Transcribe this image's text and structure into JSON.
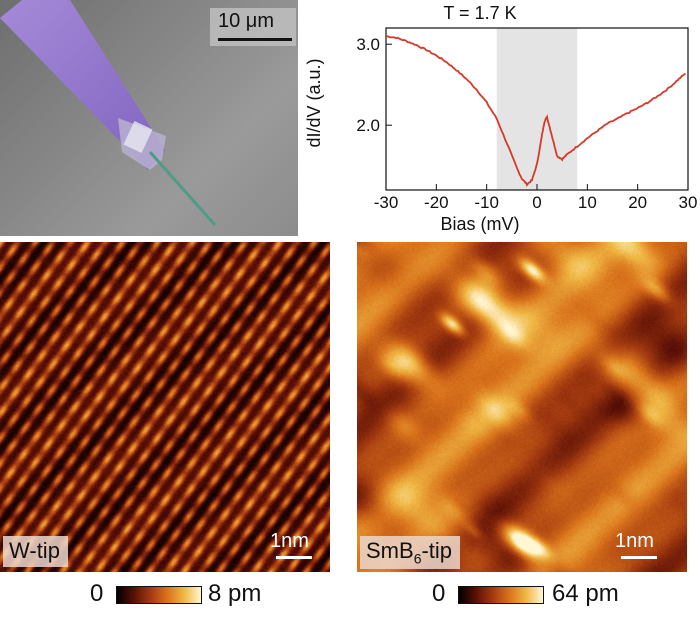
{
  "sem": {
    "scalebar_label": "10 μm"
  },
  "chart_data": {
    "type": "line",
    "title": "T = 1.7 K",
    "xlabel": "Bias (mV)",
    "ylabel": "dI/dV (a.u.)",
    "xlim": [
      -30,
      30
    ],
    "ylim": [
      1.2,
      3.2
    ],
    "x_ticks": [
      "-30",
      "-20",
      "-10",
      "0",
      "10",
      "20",
      "30"
    ],
    "y_ticks": [
      "2.0",
      "3.0"
    ],
    "shaded_region": [
      -8,
      8
    ],
    "line_color": "#d43a2a",
    "x": [
      -30,
      -28,
      -26,
      -24,
      -22,
      -20,
      -18,
      -16,
      -14,
      -12,
      -10,
      -8,
      -6,
      -4,
      -3,
      -2,
      -1,
      0,
      1,
      1.5,
      2,
      3,
      4,
      5,
      6,
      8,
      10,
      12,
      14,
      16,
      18,
      20,
      22,
      24,
      26,
      28,
      29.5
    ],
    "y": [
      3.1,
      3.08,
      3.04,
      2.99,
      2.93,
      2.86,
      2.78,
      2.68,
      2.57,
      2.44,
      2.28,
      2.08,
      1.78,
      1.47,
      1.34,
      1.27,
      1.32,
      1.52,
      1.88,
      2.05,
      2.1,
      1.86,
      1.62,
      1.58,
      1.64,
      1.74,
      1.84,
      1.93,
      2.02,
      2.08,
      2.15,
      2.21,
      2.28,
      2.36,
      2.45,
      2.56,
      2.64
    ]
  },
  "stm_left": {
    "tip_label": "W-tip",
    "scale_label": "1nm",
    "colorbar_min": "0",
    "colorbar_max": "8 pm"
  },
  "stm_right": {
    "tip_label_main": "SmB",
    "tip_label_sub": "6",
    "tip_label_rest": "-tip",
    "scale_label": "1nm",
    "colorbar_min": "0",
    "colorbar_max": "64 pm"
  },
  "colormap": [
    "#000000",
    "#5a0f06",
    "#a33a10",
    "#d9731c",
    "#f0b845",
    "#fff6d2"
  ]
}
